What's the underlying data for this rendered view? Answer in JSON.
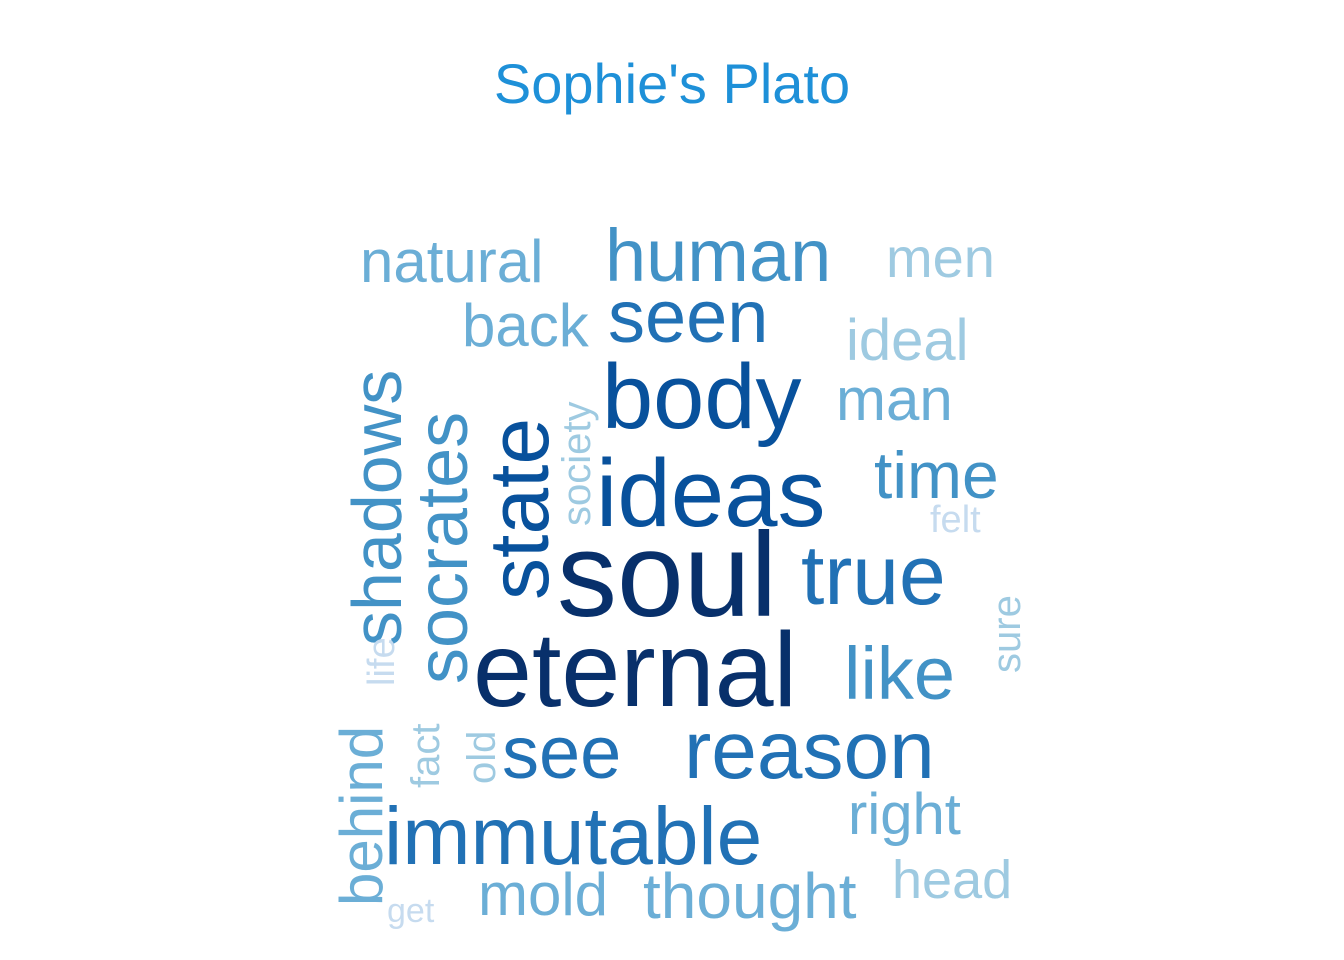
{
  "chart_data": {
    "type": "wordcloud",
    "title": "Sophie's Plato",
    "palette": "Blues",
    "words": [
      {
        "text": "soul",
        "color": "#08306b",
        "rotated": false
      },
      {
        "text": "eternal",
        "color": "#08306b",
        "rotated": false
      },
      {
        "text": "body",
        "color": "#08519c",
        "rotated": false
      },
      {
        "text": "ideas",
        "color": "#08519c",
        "rotated": false
      },
      {
        "text": "state",
        "color": "#08519c",
        "rotated": true
      },
      {
        "text": "seen",
        "color": "#2171b5",
        "rotated": false
      },
      {
        "text": "see",
        "color": "#2171b5",
        "rotated": false
      },
      {
        "text": "reason",
        "color": "#2171b5",
        "rotated": false
      },
      {
        "text": "true",
        "color": "#2171b5",
        "rotated": false
      },
      {
        "text": "immutable",
        "color": "#2171b5",
        "rotated": false
      },
      {
        "text": "human",
        "color": "#4292c6",
        "rotated": false
      },
      {
        "text": "time",
        "color": "#4292c6",
        "rotated": false
      },
      {
        "text": "like",
        "color": "#4292c6",
        "rotated": false
      },
      {
        "text": "socrates",
        "color": "#4292c6",
        "rotated": true
      },
      {
        "text": "shadows",
        "color": "#4292c6",
        "rotated": true
      },
      {
        "text": "natural",
        "color": "#6baed6",
        "rotated": false
      },
      {
        "text": "back",
        "color": "#6baed6",
        "rotated": false
      },
      {
        "text": "man",
        "color": "#6baed6",
        "rotated": false
      },
      {
        "text": "mold",
        "color": "#6baed6",
        "rotated": false
      },
      {
        "text": "thought",
        "color": "#6baed6",
        "rotated": false
      },
      {
        "text": "right",
        "color": "#6baed6",
        "rotated": false
      },
      {
        "text": "behind",
        "color": "#6baed6",
        "rotated": true
      },
      {
        "text": "men",
        "color": "#9ecae1",
        "rotated": false
      },
      {
        "text": "ideal",
        "color": "#9ecae1",
        "rotated": false
      },
      {
        "text": "head",
        "color": "#9ecae1",
        "rotated": false
      },
      {
        "text": "society",
        "color": "#9ecae1",
        "rotated": true
      },
      {
        "text": "fact",
        "color": "#9ecae1",
        "rotated": true
      },
      {
        "text": "old",
        "color": "#9ecae1",
        "rotated": true
      },
      {
        "text": "sure",
        "color": "#9ecae1",
        "rotated": true
      },
      {
        "text": "felt",
        "color": "#c6dbef",
        "rotated": false
      },
      {
        "text": "life",
        "color": "#c6dbef",
        "rotated": true
      },
      {
        "text": "get",
        "color": "#c6dbef",
        "rotated": false
      }
    ]
  }
}
